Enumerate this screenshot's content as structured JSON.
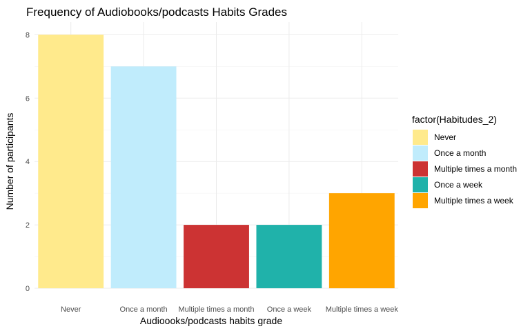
{
  "chart_data": {
    "type": "bar",
    "title": "Frequency of Audiobooks/podcasts Habits Grades",
    "xlabel": "Audioooks/podcasts habits grade",
    "ylabel": "Number of participants",
    "categories": [
      "Never",
      "Once a month",
      "Multiple times a month",
      "Once a week",
      "Multiple times a week"
    ],
    "values": [
      8,
      7,
      2,
      2,
      3
    ],
    "colors": [
      "#FFEA8C",
      "#C0ECFC",
      "#CC3333",
      "#20B2AA",
      "#FFA500"
    ],
    "ylim": [
      0,
      8.4
    ],
    "yticks": [
      0,
      2,
      4,
      6,
      8
    ],
    "grid": true,
    "legend": {
      "title": "factor(Habitudes_2)",
      "position": "right",
      "labels": [
        "Never",
        "Once a month",
        "Multiple times a month",
        "Once a week",
        "Multiple times a week"
      ]
    }
  }
}
